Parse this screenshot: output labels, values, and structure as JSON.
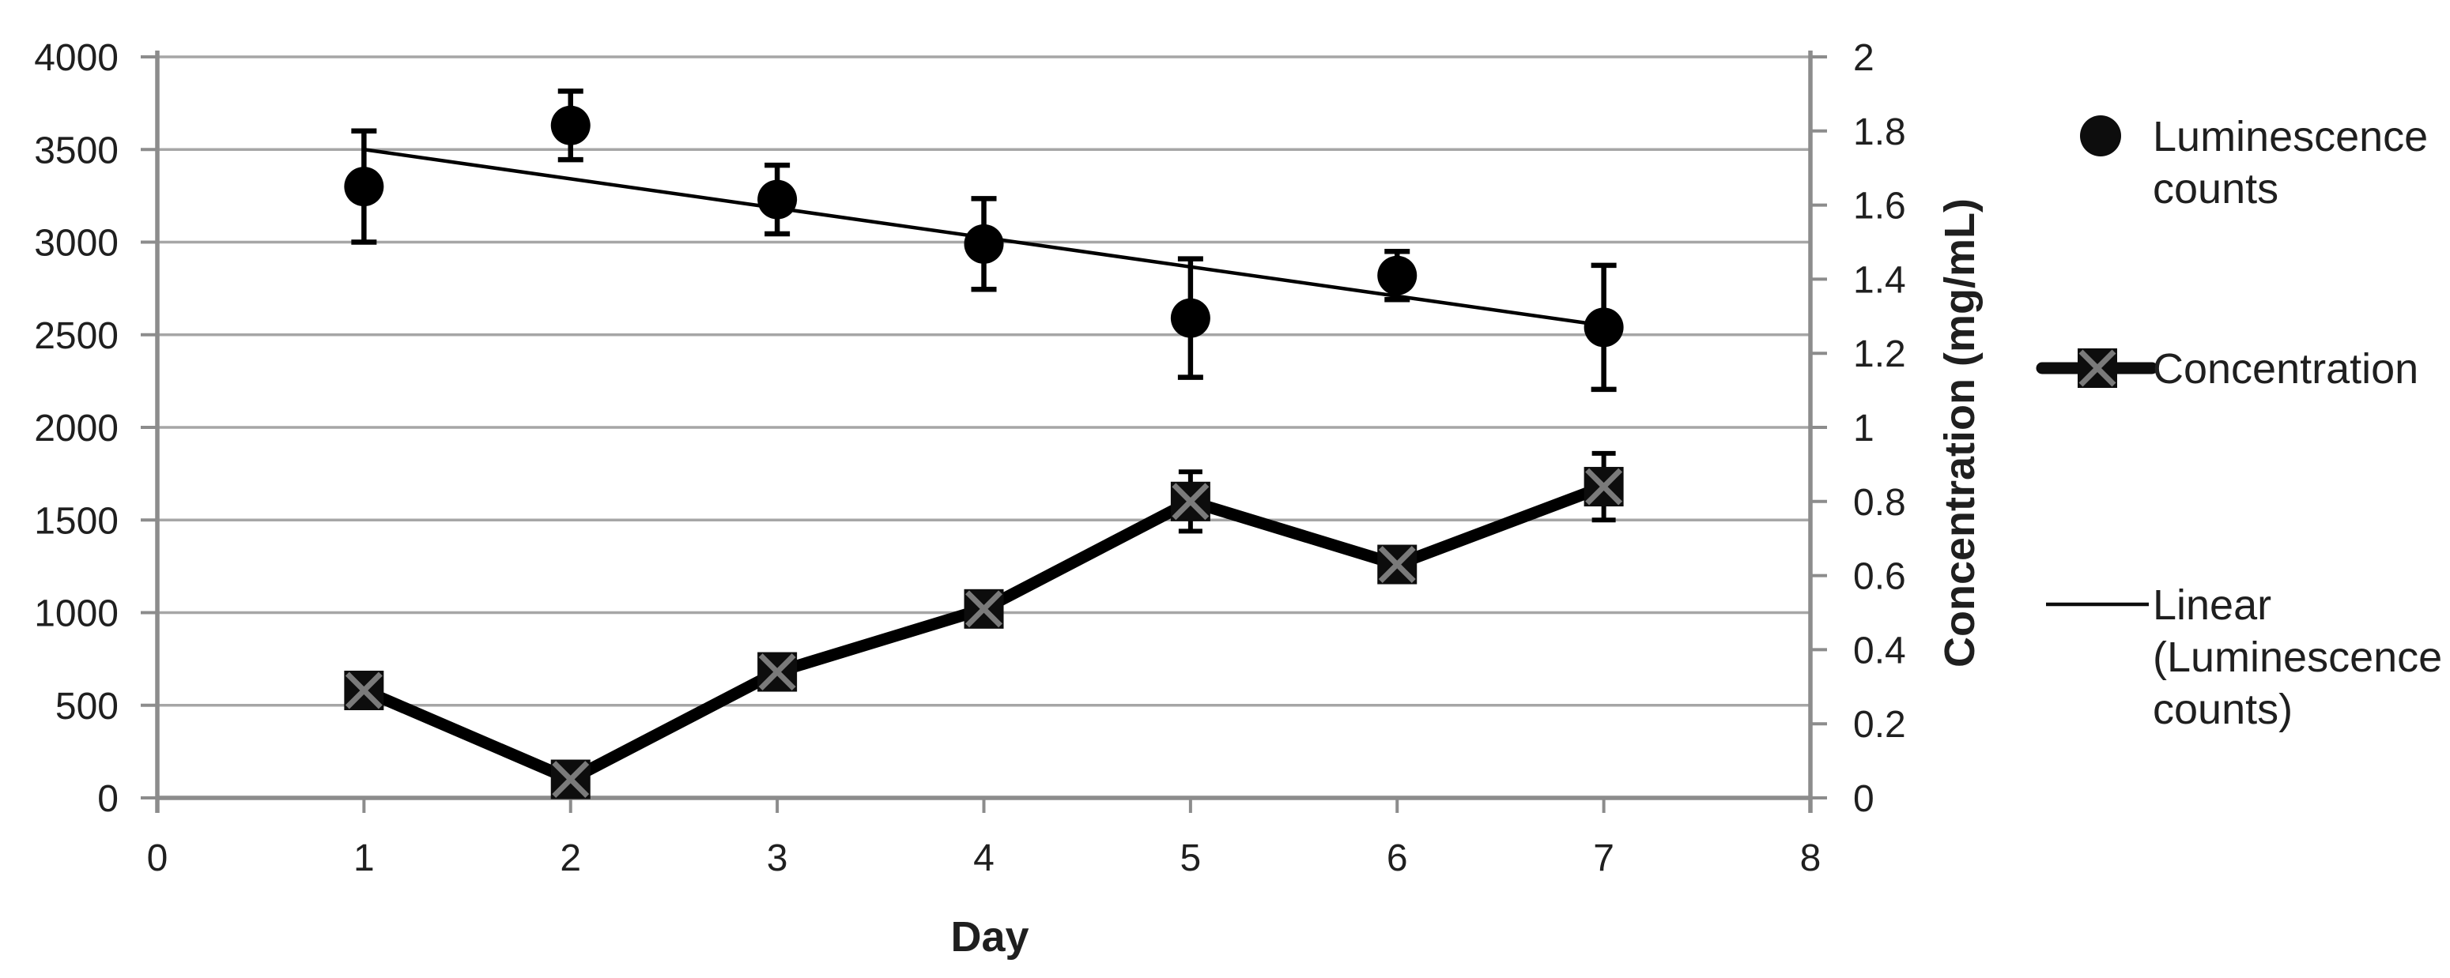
{
  "page": {
    "background": "#ffffff"
  },
  "chart_data": {
    "type": "scatter",
    "title": "",
    "xlabel": "Day",
    "ylabel_left": "",
    "ylabel_right": "Concentration (mg/mL)",
    "grid": "horizontal-only",
    "legend_position": "right",
    "x_axis": {
      "min": 0,
      "max": 8,
      "tick_values": [
        0,
        1,
        2,
        3,
        4,
        5,
        6,
        7,
        8
      ],
      "tick_labels": [
        "0",
        "1",
        "2",
        "3",
        "4",
        "5",
        "6",
        "7",
        "8"
      ]
    },
    "left_axis": {
      "min": 0,
      "max": 4000,
      "tick_values": [
        4000,
        3500,
        3000,
        2500,
        2000,
        1500,
        1000,
        500,
        0
      ],
      "tick_labels": [
        "4000",
        "3500",
        "3000",
        "2500",
        "2000",
        "1500",
        "1000",
        "500",
        "0"
      ]
    },
    "right_axis": {
      "min": 0,
      "max": 2,
      "tick_values": [
        2,
        1.8,
        1.6,
        1.4,
        1.2,
        1,
        0.8,
        0.6,
        0.4,
        0.2,
        0
      ],
      "tick_labels": [
        "2",
        "1.8",
        "1.6",
        "1.4",
        "1.2",
        "1",
        "0.8",
        "0.6",
        "0.4",
        "0.2",
        "0"
      ]
    },
    "days": [
      1,
      2,
      3,
      4,
      5,
      6,
      7
    ],
    "series": [
      {
        "name": "Luminescence counts",
        "axis": "left",
        "marker": "filled-circle",
        "line": "none",
        "values": [
          3300,
          3630,
          3230,
          2990,
          2590,
          2820,
          2540
        ],
        "error_bars": [
          300,
          185,
          185,
          245,
          320,
          130,
          335
        ]
      },
      {
        "name": "Concentration",
        "axis": "right",
        "marker": "x-square",
        "line": "thick",
        "values": [
          0.29,
          0.05,
          0.34,
          0.51,
          0.8,
          0.63,
          0.84
        ],
        "error_bars": [
          0.03,
          0.03,
          0.04,
          0.04,
          0.08,
          0.04,
          0.09
        ]
      }
    ],
    "trendline": {
      "name": "Linear (Luminescence counts)",
      "axis": "left",
      "x_start": 1,
      "value_start": 3500,
      "x_end": 7,
      "value_end": 2550
    },
    "legend": {
      "entries": [
        {
          "name": "Luminescence counts",
          "marker": "filled-circle",
          "lines": [
            "Luminescence",
            "counts"
          ]
        },
        {
          "name": "Concentration",
          "marker": "thick-line-x-square",
          "lines": [
            "Concentration"
          ]
        },
        {
          "name": "Linear (Luminescence counts)",
          "marker": "thin-line",
          "lines": [
            "Linear",
            "(Luminescence",
            "counts)"
          ]
        }
      ]
    },
    "colors": {
      "series": "#000000",
      "marker_fill": "#0d0d0d",
      "x_marker_cross": "#7a7a7a",
      "gridline": "#a6a6a6",
      "axis": "#8c8c8c",
      "text": "#1f1f1f"
    }
  }
}
